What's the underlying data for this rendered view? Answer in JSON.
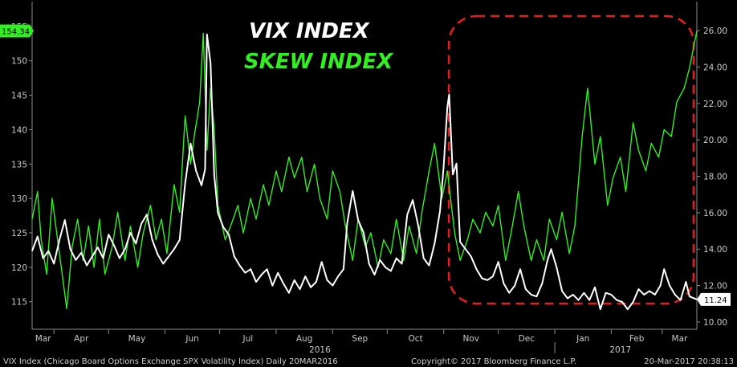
{
  "chart_data": {
    "type": "line",
    "title": "",
    "annotations": {
      "vix_label": "VIX INDEX",
      "skew_label": "SKEW INDEX"
    },
    "footer": {
      "left": "VIX Index (Chicago Board Options Exchange SPX Volatility Index)  Daily 20MAR2016",
      "center": "Copyright© 2017 Bloomberg Finance L.P.",
      "right": "20-Mar-2017 20:38:13"
    },
    "x_axis": {
      "months": [
        "Mar",
        "Apr",
        "May",
        "Jun",
        "Jul",
        "Aug",
        "Sep",
        "Oct",
        "Nov",
        "Dec",
        "Jan",
        "Feb",
        "Mar"
      ],
      "year_labels": [
        "2016",
        "2017"
      ],
      "range": [
        "2016-03-20",
        "2017-03-20"
      ]
    },
    "left_axis": {
      "label": "SKEW",
      "ticks": [
        115,
        120,
        125,
        130,
        135,
        140,
        145,
        150,
        155
      ],
      "range": [
        111,
        156.5
      ],
      "last_value_label": "154.34"
    },
    "right_axis": {
      "label": "VIX",
      "ticks": [
        "10.00",
        "12.00",
        "14.00",
        "16.00",
        "18.00",
        "20.00",
        "22.00",
        "24.00",
        "26.00"
      ],
      "range": [
        9.6,
        26.8
      ],
      "last_value_label": "11.24"
    },
    "highlight_box": {
      "color": "#e0201e",
      "style": "dashed-rounded",
      "range": [
        "2016-11-10",
        "2017-03-20"
      ]
    },
    "series": [
      {
        "name": "SKEW INDEX",
        "axis": "left",
        "color": "#33ee22",
        "points": [
          [
            "2016-03-20",
            127
          ],
          [
            "2016-03-23",
            131
          ],
          [
            "2016-03-25",
            124
          ],
          [
            "2016-03-28",
            119
          ],
          [
            "2016-03-31",
            130
          ],
          [
            "2016-04-04",
            122
          ],
          [
            "2016-04-06",
            118
          ],
          [
            "2016-04-08",
            114
          ],
          [
            "2016-04-11",
            123
          ],
          [
            "2016-04-14",
            127
          ],
          [
            "2016-04-17",
            121
          ],
          [
            "2016-04-20",
            126
          ],
          [
            "2016-04-23",
            120
          ],
          [
            "2016-04-26",
            127
          ],
          [
            "2016-04-29",
            119
          ],
          [
            "2016-05-03",
            123
          ],
          [
            "2016-05-06",
            128
          ],
          [
            "2016-05-10",
            121
          ],
          [
            "2016-05-13",
            126
          ],
          [
            "2016-05-17",
            120
          ],
          [
            "2016-05-20",
            125
          ],
          [
            "2016-05-24",
            129
          ],
          [
            "2016-05-27",
            124
          ],
          [
            "2016-05-30",
            127
          ],
          [
            "2016-06-02",
            122
          ],
          [
            "2016-06-06",
            132
          ],
          [
            "2016-06-09",
            128
          ],
          [
            "2016-06-12",
            142
          ],
          [
            "2016-06-15",
            135
          ],
          [
            "2016-06-17",
            139
          ],
          [
            "2016-06-20",
            144
          ],
          [
            "2016-06-22",
            154
          ],
          [
            "2016-06-24",
            137
          ],
          [
            "2016-06-26",
            146
          ],
          [
            "2016-06-28",
            140
          ],
          [
            "2016-06-30",
            129
          ],
          [
            "2016-07-04",
            124
          ],
          [
            "2016-07-07",
            126
          ],
          [
            "2016-07-11",
            129
          ],
          [
            "2016-07-14",
            125
          ],
          [
            "2016-07-18",
            130
          ],
          [
            "2016-07-21",
            127
          ],
          [
            "2016-07-25",
            132
          ],
          [
            "2016-07-28",
            129
          ],
          [
            "2016-08-01",
            134
          ],
          [
            "2016-08-04",
            131
          ],
          [
            "2016-08-08",
            136
          ],
          [
            "2016-08-11",
            133
          ],
          [
            "2016-08-15",
            136
          ],
          [
            "2016-08-18",
            131
          ],
          [
            "2016-08-22",
            135
          ],
          [
            "2016-08-25",
            130
          ],
          [
            "2016-08-29",
            127
          ],
          [
            "2016-09-01",
            134
          ],
          [
            "2016-09-05",
            131
          ],
          [
            "2016-09-08",
            126
          ],
          [
            "2016-09-12",
            121
          ],
          [
            "2016-09-15",
            127
          ],
          [
            "2016-09-19",
            123
          ],
          [
            "2016-09-22",
            125
          ],
          [
            "2016-09-26",
            120
          ],
          [
            "2016-09-29",
            124
          ],
          [
            "2016-10-03",
            122
          ],
          [
            "2016-10-06",
            127
          ],
          [
            "2016-10-10",
            121
          ],
          [
            "2016-10-13",
            126
          ],
          [
            "2016-10-17",
            122
          ],
          [
            "2016-10-20",
            128
          ],
          [
            "2016-10-24",
            134
          ],
          [
            "2016-10-27",
            138
          ],
          [
            "2016-10-31",
            130
          ],
          [
            "2016-11-03",
            134
          ],
          [
            "2016-11-07",
            125
          ],
          [
            "2016-11-10",
            121
          ],
          [
            "2016-11-14",
            124
          ],
          [
            "2016-11-17",
            127
          ],
          [
            "2016-11-21",
            125
          ],
          [
            "2016-11-24",
            128
          ],
          [
            "2016-11-28",
            126
          ],
          [
            "2016-12-01",
            129
          ],
          [
            "2016-12-05",
            121
          ],
          [
            "2016-12-08",
            125
          ],
          [
            "2016-12-12",
            131
          ],
          [
            "2016-12-15",
            126
          ],
          [
            "2016-12-19",
            121
          ],
          [
            "2016-12-22",
            124
          ],
          [
            "2016-12-26",
            121
          ],
          [
            "2016-12-29",
            127
          ],
          [
            "2017-01-02",
            124
          ],
          [
            "2017-01-05",
            128
          ],
          [
            "2017-01-09",
            122
          ],
          [
            "2017-01-12",
            126
          ],
          [
            "2017-01-16",
            139
          ],
          [
            "2017-01-19",
            146
          ],
          [
            "2017-01-23",
            135
          ],
          [
            "2017-01-26",
            139
          ],
          [
            "2017-01-30",
            129
          ],
          [
            "2017-02-02",
            133
          ],
          [
            "2017-02-06",
            136
          ],
          [
            "2017-02-09",
            131
          ],
          [
            "2017-02-13",
            141
          ],
          [
            "2017-02-16",
            137
          ],
          [
            "2017-02-20",
            134
          ],
          [
            "2017-02-23",
            138
          ],
          [
            "2017-02-27",
            136
          ],
          [
            "2017-03-02",
            140
          ],
          [
            "2017-03-06",
            139
          ],
          [
            "2017-03-09",
            144
          ],
          [
            "2017-03-13",
            146
          ],
          [
            "2017-03-16",
            149
          ],
          [
            "2017-03-20",
            154.34
          ]
        ]
      },
      {
        "name": "VIX INDEX",
        "axis": "right",
        "color": "#ffffff",
        "points": [
          [
            "2016-03-20",
            13.9
          ],
          [
            "2016-03-23",
            14.7
          ],
          [
            "2016-03-26",
            13.5
          ],
          [
            "2016-03-29",
            13.9
          ],
          [
            "2016-04-01",
            13.2
          ],
          [
            "2016-04-04",
            14.5
          ],
          [
            "2016-04-07",
            15.6
          ],
          [
            "2016-04-10",
            14.0
          ],
          [
            "2016-04-13",
            13.4
          ],
          [
            "2016-04-16",
            13.8
          ],
          [
            "2016-04-19",
            13.1
          ],
          [
            "2016-04-22",
            13.6
          ],
          [
            "2016-04-25",
            14.1
          ],
          [
            "2016-04-28",
            13.5
          ],
          [
            "2016-05-01",
            14.8
          ],
          [
            "2016-05-04",
            14.2
          ],
          [
            "2016-05-07",
            13.5
          ],
          [
            "2016-05-10",
            14.0
          ],
          [
            "2016-05-13",
            14.9
          ],
          [
            "2016-05-16",
            14.3
          ],
          [
            "2016-05-19",
            15.4
          ],
          [
            "2016-05-22",
            15.9
          ],
          [
            "2016-05-25",
            14.5
          ],
          [
            "2016-05-28",
            13.7
          ],
          [
            "2016-05-31",
            13.2
          ],
          [
            "2016-06-03",
            13.6
          ],
          [
            "2016-06-06",
            14.0
          ],
          [
            "2016-06-09",
            14.5
          ],
          [
            "2016-06-12",
            17.6
          ],
          [
            "2016-06-15",
            19.8
          ],
          [
            "2016-06-18",
            18.3
          ],
          [
            "2016-06-21",
            17.5
          ],
          [
            "2016-06-23",
            18.4
          ],
          [
            "2016-06-24",
            25.8
          ],
          [
            "2016-06-26",
            24.2
          ],
          [
            "2016-06-28",
            18.1
          ],
          [
            "2016-06-30",
            16.0
          ],
          [
            "2016-07-03",
            15.2
          ],
          [
            "2016-07-06",
            14.8
          ],
          [
            "2016-07-09",
            13.6
          ],
          [
            "2016-07-12",
            13.1
          ],
          [
            "2016-07-15",
            12.7
          ],
          [
            "2016-07-18",
            12.9
          ],
          [
            "2016-07-21",
            12.2
          ],
          [
            "2016-07-24",
            12.6
          ],
          [
            "2016-07-27",
            12.9
          ],
          [
            "2016-07-30",
            12.0
          ],
          [
            "2016-08-02",
            12.7
          ],
          [
            "2016-08-05",
            12.1
          ],
          [
            "2016-08-08",
            11.6
          ],
          [
            "2016-08-11",
            12.3
          ],
          [
            "2016-08-14",
            11.8
          ],
          [
            "2016-08-17",
            12.5
          ],
          [
            "2016-08-20",
            11.9
          ],
          [
            "2016-08-23",
            12.2
          ],
          [
            "2016-08-26",
            13.3
          ],
          [
            "2016-08-29",
            12.3
          ],
          [
            "2016-09-01",
            12.0
          ],
          [
            "2016-09-04",
            12.5
          ],
          [
            "2016-09-07",
            12.9
          ],
          [
            "2016-09-09",
            15.4
          ],
          [
            "2016-09-12",
            17.2
          ],
          [
            "2016-09-15",
            15.6
          ],
          [
            "2016-09-18",
            14.9
          ],
          [
            "2016-09-21",
            13.2
          ],
          [
            "2016-09-24",
            12.6
          ],
          [
            "2016-09-27",
            13.4
          ],
          [
            "2016-09-30",
            13.0
          ],
          [
            "2016-10-03",
            12.8
          ],
          [
            "2016-10-06",
            13.5
          ],
          [
            "2016-10-09",
            13.2
          ],
          [
            "2016-10-12",
            15.9
          ],
          [
            "2016-10-15",
            16.7
          ],
          [
            "2016-10-18",
            15.3
          ],
          [
            "2016-10-21",
            13.5
          ],
          [
            "2016-10-24",
            13.1
          ],
          [
            "2016-10-27",
            14.3
          ],
          [
            "2016-10-30",
            16.1
          ],
          [
            "2016-11-01",
            18.6
          ],
          [
            "2016-11-03",
            21.8
          ],
          [
            "2016-11-04",
            22.5
          ],
          [
            "2016-11-06",
            18.1
          ],
          [
            "2016-11-08",
            18.7
          ],
          [
            "2016-11-10",
            14.4
          ],
          [
            "2016-11-13",
            14.0
          ],
          [
            "2016-11-16",
            13.6
          ],
          [
            "2016-11-19",
            12.9
          ],
          [
            "2016-11-22",
            12.4
          ],
          [
            "2016-11-25",
            12.3
          ],
          [
            "2016-11-28",
            12.5
          ],
          [
            "2016-12-01",
            13.3
          ],
          [
            "2016-12-04",
            12.1
          ],
          [
            "2016-12-07",
            11.6
          ],
          [
            "2016-12-10",
            12.0
          ],
          [
            "2016-12-13",
            12.9
          ],
          [
            "2016-12-16",
            11.8
          ],
          [
            "2016-12-19",
            11.5
          ],
          [
            "2016-12-22",
            11.4
          ],
          [
            "2016-12-25",
            12.1
          ],
          [
            "2016-12-28",
            13.4
          ],
          [
            "2016-12-30",
            14.0
          ],
          [
            "2017-01-02",
            13.0
          ],
          [
            "2017-01-05",
            11.7
          ],
          [
            "2017-01-08",
            11.3
          ],
          [
            "2017-01-11",
            11.5
          ],
          [
            "2017-01-14",
            11.2
          ],
          [
            "2017-01-17",
            11.6
          ],
          [
            "2017-01-20",
            11.2
          ],
          [
            "2017-01-23",
            11.9
          ],
          [
            "2017-01-26",
            10.7
          ],
          [
            "2017-01-29",
            11.6
          ],
          [
            "2017-02-01",
            11.5
          ],
          [
            "2017-02-04",
            11.2
          ],
          [
            "2017-02-07",
            11.1
          ],
          [
            "2017-02-10",
            10.7
          ],
          [
            "2017-02-13",
            11.1
          ],
          [
            "2017-02-16",
            11.8
          ],
          [
            "2017-02-19",
            11.5
          ],
          [
            "2017-02-22",
            11.7
          ],
          [
            "2017-02-25",
            11.5
          ],
          [
            "2017-02-28",
            12.0
          ],
          [
            "2017-03-02",
            12.9
          ],
          [
            "2017-03-05",
            12.0
          ],
          [
            "2017-03-08",
            11.5
          ],
          [
            "2017-03-11",
            11.2
          ],
          [
            "2017-03-14",
            12.2
          ],
          [
            "2017-03-16",
            11.4
          ],
          [
            "2017-03-20",
            11.24
          ]
        ]
      }
    ]
  }
}
